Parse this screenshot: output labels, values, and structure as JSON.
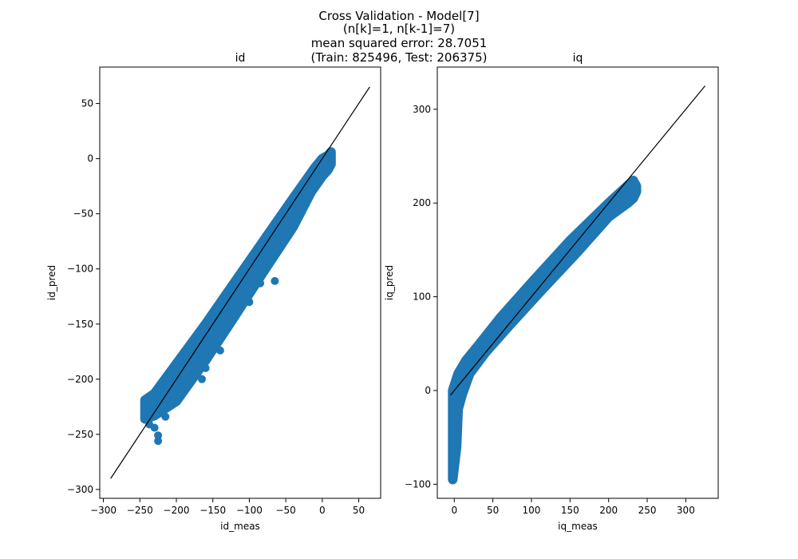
{
  "figure": {
    "suptitle_lines": [
      "Cross Validation - Model[7]",
      "(n[k]=1, n[k-1]=7)",
      "mean squared error: 28.7051",
      "(Train: 825496, Test: 206375)"
    ]
  },
  "chart_data": [
    {
      "type": "scatter",
      "title": "id",
      "xlabel": "id_meas",
      "ylabel": "id_pred",
      "xlim": [
        -305,
        80
      ],
      "ylim": [
        -308,
        83
      ],
      "xticks": [
        -300,
        -250,
        -200,
        -150,
        -100,
        -50,
        0,
        50
      ],
      "yticks": [
        -300,
        -250,
        -200,
        -150,
        -100,
        -50,
        0,
        50
      ],
      "xtick_labels": [
        "−300",
        "−250",
        "−200",
        "−150",
        "−100",
        "−50",
        "0",
        "50"
      ],
      "ytick_labels": [
        "−300",
        "−250",
        "−200",
        "−150",
        "−100",
        "−50",
        "0",
        "50"
      ],
      "grid": false,
      "marker_color": "#1f77b4",
      "reference_line": {
        "x": [
          -290,
          65
        ],
        "y": [
          -290,
          65
        ],
        "color": "#000000"
      },
      "band": {
        "upper": [
          [
            -243,
            -219
          ],
          [
            -230,
            -213
          ],
          [
            -200,
            -186
          ],
          [
            -160,
            -150
          ],
          [
            -120,
            -112
          ],
          [
            -80,
            -74
          ],
          [
            -40,
            -36
          ],
          [
            -10,
            -8
          ],
          [
            0,
            0
          ],
          [
            8,
            3
          ],
          [
            12,
            6
          ]
        ],
        "lower": [
          [
            -243,
            -236
          ],
          [
            -230,
            -233
          ],
          [
            -200,
            -220
          ],
          [
            -160,
            -183
          ],
          [
            -120,
            -143
          ],
          [
            -80,
            -102
          ],
          [
            -40,
            -62
          ],
          [
            -15,
            -30
          ],
          [
            0,
            -16
          ],
          [
            8,
            -10
          ],
          [
            12,
            -5
          ]
        ]
      },
      "outliers": [
        [
          -225,
          -256
        ],
        [
          -225,
          -251
        ],
        [
          -215,
          -234
        ],
        [
          -165,
          -200
        ],
        [
          -160,
          -190
        ],
        [
          -140,
          -174
        ],
        [
          -100,
          -130
        ],
        [
          -85,
          -113
        ],
        [
          -65,
          -111
        ],
        [
          -230,
          -244
        ],
        [
          -237,
          -241
        ]
      ]
    },
    {
      "type": "scatter",
      "title": "iq",
      "xlabel": "iq_meas",
      "ylabel": "iq_pred",
      "xlim": [
        -22,
        342
      ],
      "ylim": [
        -115,
        345
      ],
      "xticks": [
        0,
        50,
        100,
        150,
        200,
        250,
        300
      ],
      "yticks": [
        -100,
        0,
        100,
        200,
        300
      ],
      "xtick_labels": [
        "0",
        "50",
        "100",
        "150",
        "200",
        "250",
        "300"
      ],
      "ytick_labels": [
        "−100",
        "0",
        "100",
        "200",
        "300"
      ],
      "grid": false,
      "marker_color": "#1f77b4",
      "reference_line": {
        "x": [
          -5,
          325
        ],
        "y": [
          -5,
          325
        ],
        "color": "#000000"
      },
      "band": {
        "upper": [
          [
            -2,
            0
          ],
          [
            5,
            18
          ],
          [
            15,
            32
          ],
          [
            30,
            47
          ],
          [
            60,
            78
          ],
          [
            100,
            115
          ],
          [
            150,
            160
          ],
          [
            200,
            200
          ],
          [
            225,
            219
          ],
          [
            232,
            224
          ],
          [
            236,
            218
          ]
        ],
        "lower": [
          [
            -2,
            -95
          ],
          [
            3,
            -60
          ],
          [
            5,
            -20
          ],
          [
            10,
            -5
          ],
          [
            20,
            18
          ],
          [
            40,
            40
          ],
          [
            70,
            68
          ],
          [
            110,
            104
          ],
          [
            160,
            148
          ],
          [
            200,
            185
          ],
          [
            225,
            200
          ],
          [
            232,
            205
          ],
          [
            236,
            212
          ]
        ]
      },
      "outliers": [
        [
          -2,
          -93
        ],
        [
          -3,
          -85
        ],
        [
          -1,
          -70
        ],
        [
          0,
          -75
        ],
        [
          2,
          -65
        ]
      ]
    }
  ]
}
